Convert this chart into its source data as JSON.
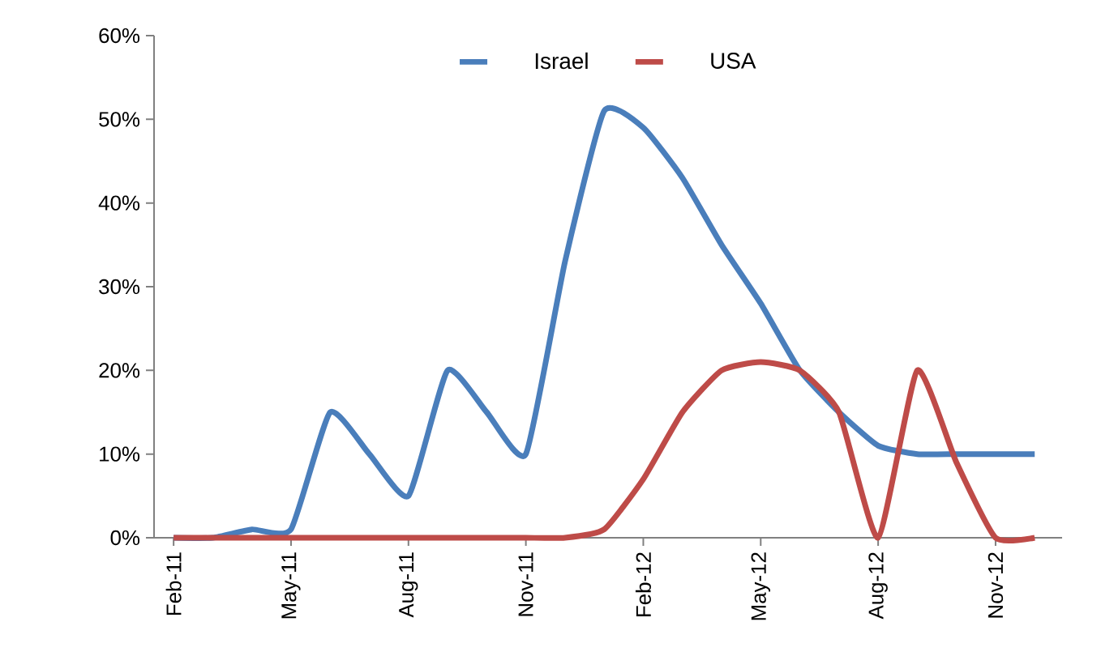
{
  "chart_data": {
    "type": "line",
    "categories": [
      "Feb-11",
      null,
      null,
      "May-11",
      null,
      null,
      "Aug-11",
      null,
      null,
      "Nov-11",
      null,
      null,
      "Feb-12",
      null,
      null,
      "May-12",
      null,
      null,
      "Aug-12",
      null,
      null,
      "Nov-12",
      null
    ],
    "series": [
      {
        "name": "Israel",
        "color": "#4a7ebb",
        "values": [
          0,
          0,
          1,
          1,
          15,
          10,
          5,
          20,
          15,
          10,
          33,
          51,
          49,
          43,
          35,
          28,
          20,
          15,
          11,
          10,
          10,
          10,
          10
        ]
      },
      {
        "name": "USA",
        "color": "#be4b48",
        "values": [
          0,
          0,
          0,
          0,
          0,
          0,
          0,
          0,
          0,
          0,
          0,
          1,
          7,
          15,
          20,
          21,
          20,
          15,
          0,
          20,
          9,
          0,
          0
        ]
      }
    ],
    "ylim": [
      0,
      60
    ],
    "yticks": [
      {
        "value": 0,
        "label": "0%"
      },
      {
        "value": 10,
        "label": "10%"
      },
      {
        "value": 20,
        "label": "20%"
      },
      {
        "value": 30,
        "label": "30%"
      },
      {
        "value": 40,
        "label": "40%"
      },
      {
        "value": 50,
        "label": "50%"
      },
      {
        "value": 60,
        "label": "60%"
      }
    ],
    "legend": "top",
    "grid": false,
    "marker": "none",
    "line_style": "solid"
  }
}
